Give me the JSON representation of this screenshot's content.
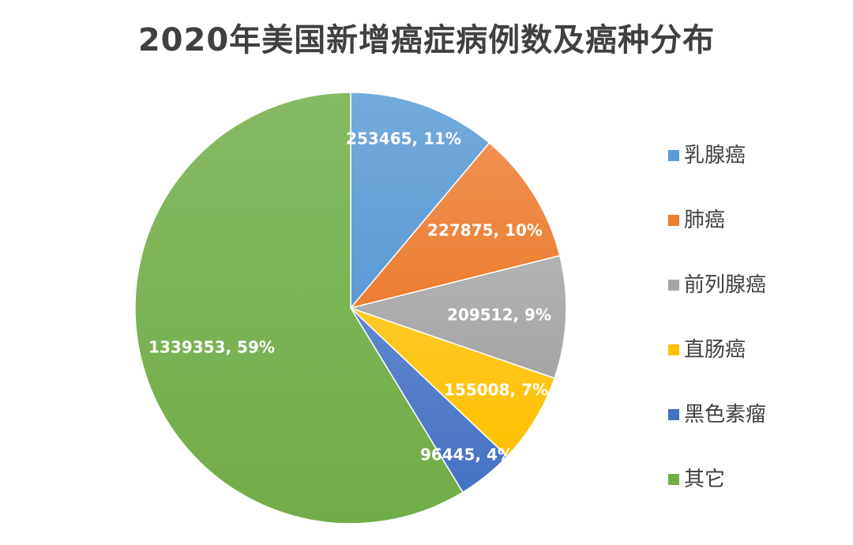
{
  "chart_data": {
    "type": "pie",
    "title": "2020年美国新增癌症病例数及癌种分布",
    "slices": [
      {
        "name": "乳腺癌",
        "value": 253465,
        "percent_label": "11%",
        "data_label": "253465, 11%",
        "color": "#5b9bd5"
      },
      {
        "name": "肺癌",
        "value": 227875,
        "percent_label": "10%",
        "data_label": "227875, 10%",
        "color": "#ed7d31"
      },
      {
        "name": "前列腺癌",
        "value": 209512,
        "percent_label": "9%",
        "data_label": "209512, 9%",
        "color": "#a5a5a5"
      },
      {
        "name": "直肠癌",
        "value": 155008,
        "percent_label": "7%",
        "data_label": "155008, 7%",
        "color": "#ffc000"
      },
      {
        "name": "黑色素瘤",
        "value": 96445,
        "percent_label": "4%",
        "data_label": "96445, 4%",
        "color": "#4472c4"
      },
      {
        "name": "其它",
        "value": 1339353,
        "percent_label": "59%",
        "data_label": "1339353, 59%",
        "color": "#70ad47"
      }
    ],
    "legend_position": "right"
  }
}
